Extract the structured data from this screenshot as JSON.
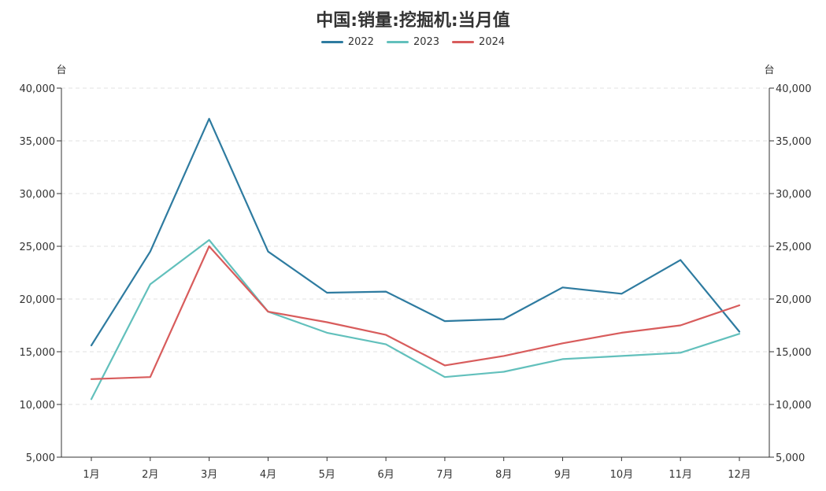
{
  "chart_data": {
    "type": "line",
    "title": "中国:销量:挖掘机:当月值",
    "ylabel_left": "台",
    "ylabel_right": "台",
    "categories": [
      "1月",
      "2月",
      "3月",
      "4月",
      "5月",
      "6月",
      "7月",
      "8月",
      "9月",
      "10月",
      "11月",
      "12月"
    ],
    "ylim": [
      5000,
      40000
    ],
    "yticks": [
      5000,
      10000,
      15000,
      20000,
      25000,
      30000,
      35000,
      40000
    ],
    "ytick_labels": [
      "5,000",
      "10,000",
      "15,000",
      "20,000",
      "25,000",
      "30,000",
      "35,000",
      "40,000"
    ],
    "grid": true,
    "legend": "top-center",
    "series": [
      {
        "name": "2022",
        "color": "#2e7ba0",
        "values": [
          15600,
          24500,
          37100,
          24500,
          20600,
          20700,
          17900,
          18100,
          21100,
          20500,
          23700,
          16900
        ]
      },
      {
        "name": "2023",
        "color": "#62c0bc",
        "values": [
          10500,
          21400,
          25600,
          18800,
          16800,
          15700,
          12600,
          13100,
          14300,
          14600,
          14900,
          16700
        ]
      },
      {
        "name": "2024",
        "color": "#d85c5c",
        "values": [
          12400,
          12600,
          25000,
          18800,
          17800,
          16600,
          13700,
          14600,
          15800,
          16800,
          17500,
          19400
        ]
      }
    ]
  }
}
